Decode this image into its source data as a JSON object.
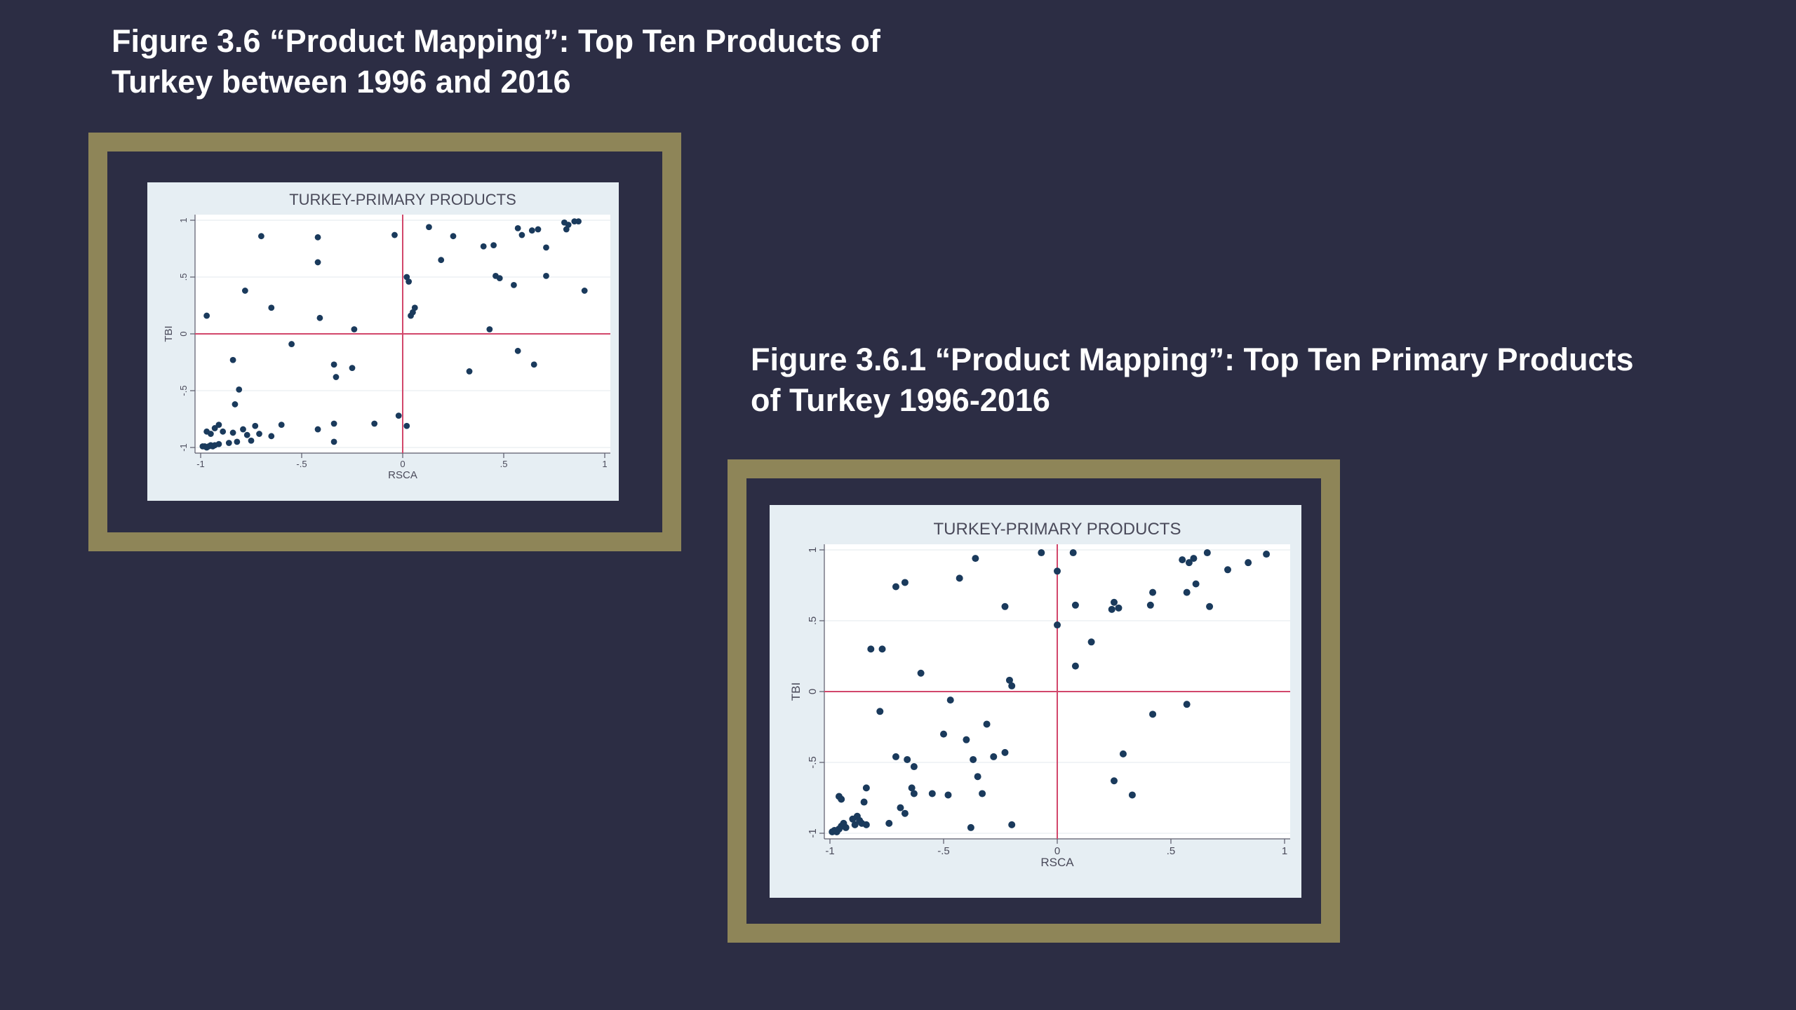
{
  "figures": [
    {
      "title_line1": "Figure 3.6 “Product Mapping”: Top Ten Products of",
      "title_line2": "Turkey between 1996 and 2016"
    },
    {
      "title_line1": "Figure 3.6.1 “Product Mapping”: Top Ten Primary Products",
      "title_line2": "of Turkey 1996-2016"
    }
  ],
  "colors": {
    "background": "#2c2d44",
    "frame": "#8e8558",
    "panel": "#e6eef3",
    "plot": "#ffffff",
    "point": "#1a3a5c",
    "refline": "#d2476b",
    "text": "#4a4a5a"
  },
  "chart_data": [
    {
      "type": "scatter",
      "title": "TURKEY-PRIMARY PRODUCTS",
      "xlabel": "RSCA",
      "ylabel": "TBI",
      "xlim": [
        -1,
        1
      ],
      "ylim": [
        -1,
        1
      ],
      "xticks": [
        "-1",
        "-.5",
        "0",
        ".5",
        "1"
      ],
      "yticks": [
        "-1",
        "-.5",
        "0",
        ".5",
        "1"
      ],
      "reference_lines": {
        "x": 0,
        "y": 0
      },
      "grid": true,
      "points": [
        [
          -0.99,
          -0.99
        ],
        [
          -0.98,
          -0.99
        ],
        [
          -0.97,
          -1.0
        ],
        [
          -0.96,
          -0.99
        ],
        [
          -0.95,
          -0.98
        ],
        [
          -0.94,
          -0.99
        ],
        [
          -0.93,
          -0.98
        ],
        [
          -0.91,
          -0.97
        ],
        [
          -0.97,
          -0.86
        ],
        [
          -0.95,
          -0.88
        ],
        [
          -0.93,
          -0.83
        ],
        [
          -0.91,
          -0.8
        ],
        [
          -0.89,
          -0.86
        ],
        [
          -0.86,
          -0.96
        ],
        [
          -0.84,
          -0.87
        ],
        [
          -0.82,
          -0.95
        ],
        [
          -0.79,
          -0.84
        ],
        [
          -0.77,
          -0.89
        ],
        [
          -0.75,
          -0.94
        ],
        [
          -0.73,
          -0.81
        ],
        [
          -0.71,
          -0.88
        ],
        [
          -0.65,
          -0.9
        ],
        [
          -0.6,
          -0.8
        ],
        [
          -0.42,
          -0.84
        ],
        [
          -0.34,
          -0.95
        ],
        [
          -0.34,
          -0.79
        ],
        [
          -0.14,
          -0.79
        ],
        [
          -0.02,
          -0.72
        ],
        [
          0.02,
          -0.81
        ],
        [
          -0.83,
          -0.62
        ],
        [
          -0.81,
          -0.49
        ],
        [
          -0.84,
          -0.23
        ],
        [
          -0.97,
          0.16
        ],
        [
          -0.78,
          0.38
        ],
        [
          -0.65,
          0.23
        ],
        [
          -0.7,
          0.86
        ],
        [
          -0.42,
          0.85
        ],
        [
          -0.42,
          0.63
        ],
        [
          -0.41,
          0.14
        ],
        [
          -0.55,
          -0.09
        ],
        [
          -0.24,
          0.04
        ],
        [
          -0.34,
          -0.27
        ],
        [
          -0.33,
          -0.38
        ],
        [
          -0.25,
          -0.3
        ],
        [
          -0.04,
          0.87
        ],
        [
          0.02,
          0.5
        ],
        [
          0.03,
          0.46
        ],
        [
          0.04,
          0.16
        ],
        [
          0.05,
          0.19
        ],
        [
          0.06,
          0.23
        ],
        [
          0.13,
          0.94
        ],
        [
          0.19,
          0.65
        ],
        [
          0.25,
          0.86
        ],
        [
          0.33,
          -0.33
        ],
        [
          0.4,
          0.77
        ],
        [
          0.45,
          0.78
        ],
        [
          0.46,
          0.51
        ],
        [
          0.48,
          0.49
        ],
        [
          0.43,
          0.04
        ],
        [
          0.55,
          0.43
        ],
        [
          0.57,
          0.93
        ],
        [
          0.59,
          0.87
        ],
        [
          0.57,
          -0.15
        ],
        [
          0.65,
          -0.27
        ],
        [
          0.64,
          0.91
        ],
        [
          0.67,
          0.92
        ],
        [
          0.71,
          0.76
        ],
        [
          0.71,
          0.51
        ],
        [
          0.8,
          0.98
        ],
        [
          0.81,
          0.92
        ],
        [
          0.82,
          0.96
        ],
        [
          0.85,
          0.99
        ],
        [
          0.87,
          0.99
        ],
        [
          0.9,
          0.38
        ]
      ]
    },
    {
      "type": "scatter",
      "title": "TURKEY-PRIMARY PRODUCTS",
      "xlabel": "RSCA",
      "ylabel": "TBI",
      "xlim": [
        -1,
        1
      ],
      "ylim": [
        -1,
        1
      ],
      "xticks": [
        "-1",
        "-.5",
        "0",
        ".5",
        "1"
      ],
      "yticks": [
        "-1",
        "-.5",
        "0",
        ".5",
        "1"
      ],
      "reference_lines": {
        "x": 0,
        "y": 0
      },
      "grid": true,
      "points": [
        [
          -0.99,
          -0.99
        ],
        [
          -0.98,
          -0.98
        ],
        [
          -0.97,
          -0.99
        ],
        [
          -0.96,
          -0.97
        ],
        [
          -0.95,
          -0.95
        ],
        [
          -0.94,
          -0.93
        ],
        [
          -0.93,
          -0.96
        ],
        [
          -0.9,
          -0.9
        ],
        [
          -0.89,
          -0.94
        ],
        [
          -0.88,
          -0.88
        ],
        [
          -0.87,
          -0.91
        ],
        [
          -0.86,
          -0.93
        ],
        [
          -0.84,
          -0.94
        ],
        [
          -0.85,
          -0.78
        ],
        [
          -0.84,
          -0.68
        ],
        [
          -0.95,
          -0.76
        ],
        [
          -0.96,
          -0.74
        ],
        [
          -0.74,
          -0.93
        ],
        [
          -0.69,
          -0.82
        ],
        [
          -0.67,
          -0.86
        ],
        [
          -0.63,
          -0.72
        ],
        [
          -0.64,
          -0.68
        ],
        [
          -0.55,
          -0.72
        ],
        [
          -0.48,
          -0.73
        ],
        [
          -0.38,
          -0.96
        ],
        [
          -0.35,
          -0.6
        ],
        [
          -0.37,
          -0.48
        ],
        [
          -0.33,
          -0.72
        ],
        [
          -0.4,
          -0.34
        ],
        [
          -0.5,
          -0.3
        ],
        [
          -0.47,
          -0.06
        ],
        [
          -0.31,
          -0.23
        ],
        [
          -0.28,
          -0.46
        ],
        [
          -0.23,
          -0.43
        ],
        [
          -0.2,
          -0.94
        ],
        [
          -0.21,
          0.08
        ],
        [
          -0.2,
          0.04
        ],
        [
          -0.23,
          0.6
        ],
        [
          -0.43,
          0.8
        ],
        [
          -0.36,
          0.94
        ],
        [
          -0.71,
          0.74
        ],
        [
          -0.67,
          0.77
        ],
        [
          -0.77,
          0.3
        ],
        [
          -0.71,
          -0.46
        ],
        [
          -0.66,
          -0.48
        ],
        [
          -0.63,
          -0.53
        ],
        [
          -0.6,
          0.13
        ],
        [
          -0.78,
          -0.14
        ],
        [
          -0.82,
          0.3
        ],
        [
          -0.07,
          0.98
        ],
        [
          0.0,
          0.85
        ],
        [
          0.0,
          0.47
        ],
        [
          0.07,
          0.98
        ],
        [
          0.08,
          0.61
        ],
        [
          0.08,
          0.18
        ],
        [
          0.15,
          0.35
        ],
        [
          0.24,
          0.58
        ],
        [
          0.25,
          0.63
        ],
        [
          0.27,
          0.59
        ],
        [
          0.29,
          -0.44
        ],
        [
          0.25,
          -0.63
        ],
        [
          0.33,
          -0.73
        ],
        [
          0.42,
          -0.16
        ],
        [
          0.41,
          0.61
        ],
        [
          0.42,
          0.7
        ],
        [
          0.57,
          -0.09
        ],
        [
          0.57,
          0.7
        ],
        [
          0.55,
          0.93
        ],
        [
          0.58,
          0.91
        ],
        [
          0.61,
          0.76
        ],
        [
          0.6,
          0.94
        ],
        [
          0.66,
          0.98
        ],
        [
          0.67,
          0.6
        ],
        [
          0.75,
          0.86
        ],
        [
          0.84,
          0.91
        ],
        [
          0.92,
          0.97
        ]
      ]
    }
  ]
}
